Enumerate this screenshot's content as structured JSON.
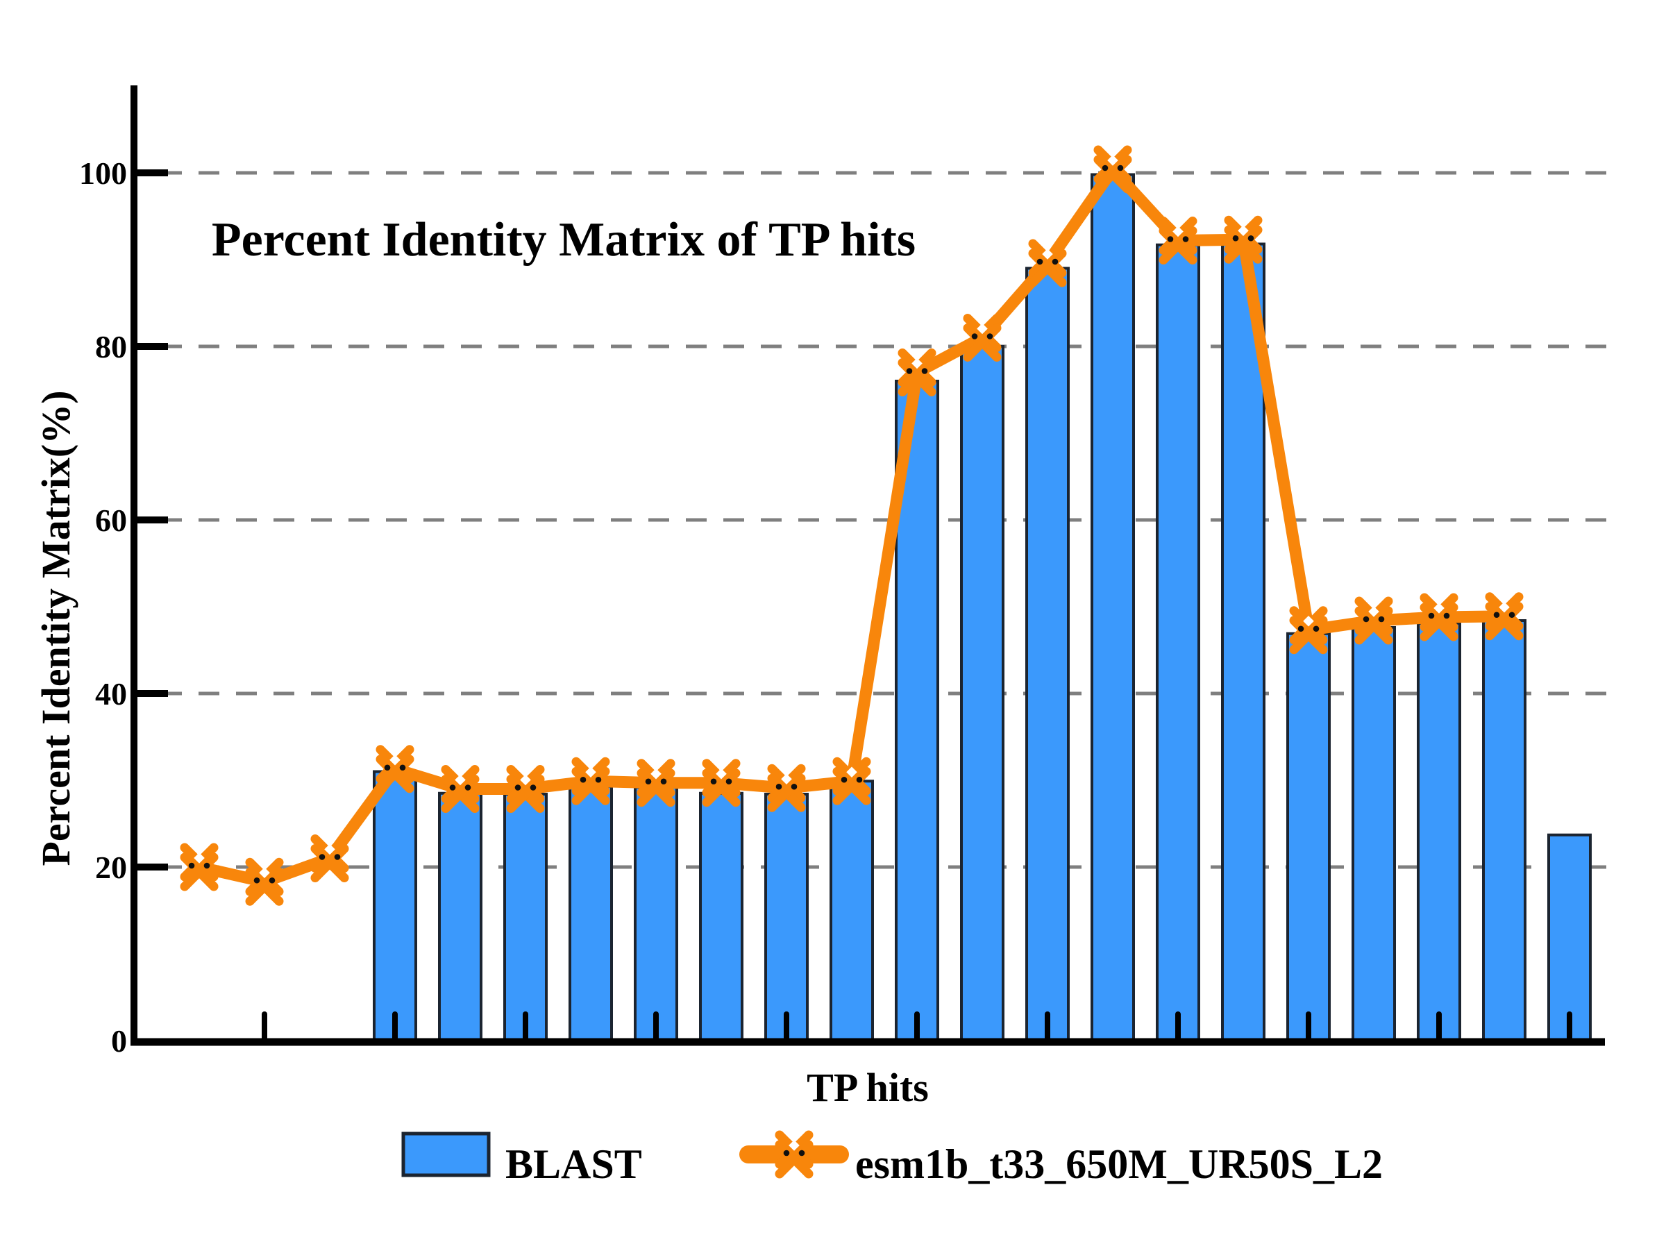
{
  "title": "Percent Identity Matrix of TP hits",
  "axes": {
    "ylabel": "Percent Identity Matrix(%)",
    "xlabel": "TP hits",
    "yticks": [
      0,
      20,
      40,
      60,
      80,
      100
    ],
    "ylim": [
      0,
      110
    ],
    "grid": "dashed horizontal at 20,40,60,80,100",
    "xticklabels": [],
    "xticks_at_positions": [
      2,
      4,
      6,
      8,
      10,
      12,
      14,
      16,
      18,
      20,
      22
    ]
  },
  "legend": {
    "position": "bottom-center",
    "items": [
      {
        "label": "BLAST",
        "swatch": "blue-filled-square",
        "type": "bar"
      },
      {
        "label": "esm1b_t33_650M_UR50S_L2",
        "swatch": "orange-line-with-x-marker",
        "type": "line"
      }
    ]
  },
  "colors": {
    "bar_fill": "#3B99FC",
    "bar_edge": "#1B2430",
    "line": "#F8860B",
    "grid": "#7F7F7F",
    "axis": "#000000",
    "marker_dot": "#101010",
    "background": "#FFFFFF"
  },
  "chart_data": {
    "type": "bar+line",
    "title": "Percent Identity Matrix of TP hits",
    "xlabel": "TP hits",
    "ylabel": "Percent Identity Matrix(%)",
    "ylim": [
      0,
      110
    ],
    "x": [
      1,
      2,
      3,
      4,
      5,
      6,
      7,
      8,
      9,
      10,
      11,
      12,
      13,
      14,
      15,
      16,
      17,
      18,
      19,
      20,
      21,
      22
    ],
    "series": [
      {
        "name": "BLAST",
        "type": "bar",
        "color": "#3B99FC",
        "values": [
          null,
          null,
          null,
          31.0,
          28.5,
          28.4,
          29.3,
          29.2,
          28.5,
          28.4,
          29.9,
          76.0,
          80.0,
          89.0,
          99.8,
          91.7,
          91.8,
          46.9,
          47.6,
          48.1,
          48.4,
          23.7
        ]
      },
      {
        "name": "esm1b_t33_650M_UR50S_L2",
        "type": "line",
        "color": "#F8860B",
        "marker": "double-x-with-black-dots",
        "values": [
          20.0,
          18.3,
          21.0,
          31.3,
          29.0,
          29.0,
          29.9,
          29.7,
          29.7,
          29.1,
          29.9,
          77.0,
          81.0,
          89.6,
          100.4,
          92.2,
          92.3,
          47.3,
          48.4,
          48.8,
          48.9,
          null
        ]
      }
    ]
  }
}
